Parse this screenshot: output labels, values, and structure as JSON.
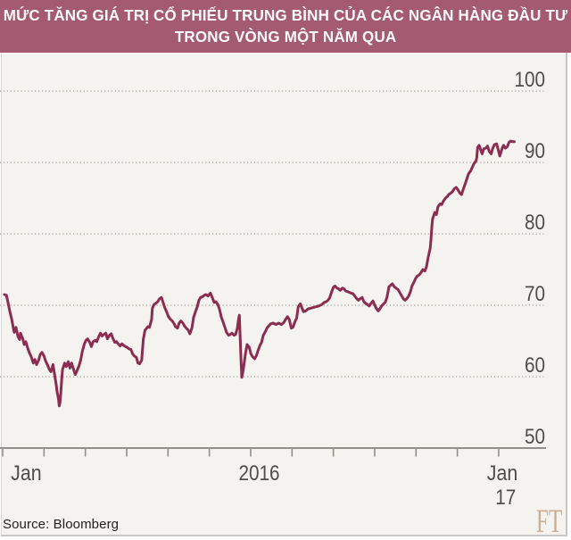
{
  "title": {
    "line1": "MỨC TĂNG GIÁ TRỊ CỔ PHIẾU TRUNG BÌNH CỦA CÁC NGÂN HÀNG ĐẦU TƯ",
    "line2": "TRONG VÒNG MỘT NĂM QUA"
  },
  "footer": {
    "source": "Source: Bloomberg",
    "logo": "FT"
  },
  "colors": {
    "title_bg": "#a45a70",
    "title_text": "#fdfbfa",
    "line": "#8c2c50",
    "grid_dotted": "#b6b3aa",
    "axis": "#90908b",
    "tick_label": "#4d4d4d",
    "panel_bg": "#f4f3ef",
    "frame_border": "#c7c6c2",
    "source_text": "#222222",
    "ft_logo": "#ccae90"
  },
  "chart_data": {
    "type": "line",
    "title": "Mức tăng giá trị cổ phiếu trung bình của các ngân hàng đầu tư trong vòng một năm qua",
    "xlabel": "",
    "ylabel": "",
    "x_unit": "months since Jan 2016",
    "x_range": [
      0,
      13.2
    ],
    "ylim": [
      50,
      100
    ],
    "grid": "horizontal-dotted",
    "legend": "none",
    "y_ticks": [
      50,
      60,
      70,
      80,
      90,
      100
    ],
    "x_ticks_months": [
      0,
      1,
      2,
      3,
      4,
      5,
      6,
      7,
      8,
      9,
      10,
      11,
      12
    ],
    "x_labels": [
      {
        "text": "Jan",
        "month": 0.55,
        "row": 1
      },
      {
        "text": "2016",
        "month": 6.2,
        "row": 1
      },
      {
        "text": "Jan",
        "month": 12.1,
        "row": 1
      },
      {
        "text": "17",
        "month": 12.18,
        "row": 2
      }
    ],
    "series": [
      {
        "name": "average-investment-bank-share-price-index",
        "color": "#8c2c50",
        "points": [
          [
            0.02,
            71.5
          ],
          [
            0.07,
            71.4
          ],
          [
            0.11,
            70.3
          ],
          [
            0.15,
            69.2
          ],
          [
            0.2,
            68.0
          ],
          [
            0.24,
            66.7
          ],
          [
            0.26,
            66.2
          ],
          [
            0.3,
            66.9
          ],
          [
            0.35,
            65.6
          ],
          [
            0.39,
            65.2
          ],
          [
            0.41,
            66.1
          ],
          [
            0.46,
            65.4
          ],
          [
            0.5,
            64.5
          ],
          [
            0.54,
            64.9
          ],
          [
            0.59,
            63.9
          ],
          [
            0.63,
            63.3
          ],
          [
            0.67,
            62.8
          ],
          [
            0.72,
            61.9
          ],
          [
            0.76,
            62.4
          ],
          [
            0.8,
            61.7
          ],
          [
            0.85,
            62.3
          ],
          [
            0.89,
            63.1
          ],
          [
            0.93,
            63.4
          ],
          [
            0.98,
            62.9
          ],
          [
            1.02,
            62.2
          ],
          [
            1.07,
            61.6
          ],
          [
            1.11,
            61.0
          ],
          [
            1.15,
            60.7
          ],
          [
            1.2,
            61.7
          ],
          [
            1.24,
            60.2
          ],
          [
            1.28,
            58.8
          ],
          [
            1.3,
            57.8
          ],
          [
            1.33,
            57.0
          ],
          [
            1.35,
            55.9
          ],
          [
            1.37,
            56.4
          ],
          [
            1.39,
            57.8
          ],
          [
            1.41,
            59.5
          ],
          [
            1.43,
            61.0
          ],
          [
            1.48,
            61.9
          ],
          [
            1.52,
            61.4
          ],
          [
            1.57,
            62.1
          ],
          [
            1.61,
            61.2
          ],
          [
            1.65,
            61.9
          ],
          [
            1.7,
            61.0
          ],
          [
            1.74,
            60.3
          ],
          [
            1.78,
            60.8
          ],
          [
            1.83,
            61.5
          ],
          [
            1.87,
            62.3
          ],
          [
            1.91,
            63.5
          ],
          [
            1.96,
            64.6
          ],
          [
            2.0,
            65.1
          ],
          [
            2.04,
            65.3
          ],
          [
            2.09,
            64.8
          ],
          [
            2.13,
            64.2
          ],
          [
            2.17,
            64.9
          ],
          [
            2.22,
            65.1
          ],
          [
            2.26,
            64.9
          ],
          [
            2.3,
            65.5
          ],
          [
            2.35,
            66.1
          ],
          [
            2.39,
            65.7
          ],
          [
            2.43,
            65.9
          ],
          [
            2.48,
            66.1
          ],
          [
            2.52,
            65.3
          ],
          [
            2.57,
            65.8
          ],
          [
            2.61,
            66.0
          ],
          [
            2.65,
            65.4
          ],
          [
            2.7,
            64.8
          ],
          [
            2.74,
            64.9
          ],
          [
            2.78,
            64.6
          ],
          [
            2.83,
            64.3
          ],
          [
            2.87,
            64.6
          ],
          [
            2.91,
            64.4
          ],
          [
            2.96,
            64.2
          ],
          [
            3.0,
            64.1
          ],
          [
            3.04,
            63.9
          ],
          [
            3.09,
            63.8
          ],
          [
            3.13,
            63.2
          ],
          [
            3.17,
            62.9
          ],
          [
            3.22,
            62.7
          ],
          [
            3.26,
            61.9
          ],
          [
            3.3,
            61.8
          ],
          [
            3.35,
            62.3
          ],
          [
            3.39,
            65.2
          ],
          [
            3.43,
            66.5
          ],
          [
            3.46,
            66.7
          ],
          [
            3.5,
            67.0
          ],
          [
            3.54,
            66.9
          ],
          [
            3.59,
            68.0
          ],
          [
            3.61,
            69.6
          ],
          [
            3.65,
            70.1
          ],
          [
            3.7,
            70.3
          ],
          [
            3.74,
            70.5
          ],
          [
            3.78,
            70.9
          ],
          [
            3.83,
            71.1
          ],
          [
            3.87,
            70.4
          ],
          [
            3.91,
            69.7
          ],
          [
            3.96,
            69.0
          ],
          [
            4.0,
            68.4
          ],
          [
            4.04,
            68.1
          ],
          [
            4.09,
            67.8
          ],
          [
            4.13,
            67.5
          ],
          [
            4.17,
            67.0
          ],
          [
            4.22,
            66.8
          ],
          [
            4.26,
            67.5
          ],
          [
            4.3,
            67.8
          ],
          [
            4.35,
            67.5
          ],
          [
            4.39,
            67.1
          ],
          [
            4.43,
            66.8
          ],
          [
            4.48,
            66.5
          ],
          [
            4.52,
            66.0
          ],
          [
            4.57,
            66.8
          ],
          [
            4.61,
            68.3
          ],
          [
            4.65,
            69.0
          ],
          [
            4.7,
            69.8
          ],
          [
            4.74,
            70.7
          ],
          [
            4.78,
            71.1
          ],
          [
            4.83,
            71.2
          ],
          [
            4.87,
            71.4
          ],
          [
            4.91,
            71.5
          ],
          [
            4.96,
            71.3
          ],
          [
            5.0,
            71.6
          ],
          [
            5.02,
            71.7
          ],
          [
            5.07,
            71.0
          ],
          [
            5.11,
            70.4
          ],
          [
            5.15,
            70.5
          ],
          [
            5.2,
            70.1
          ],
          [
            5.24,
            69.4
          ],
          [
            5.28,
            68.4
          ],
          [
            5.33,
            67.6
          ],
          [
            5.37,
            66.9
          ],
          [
            5.41,
            66.2
          ],
          [
            5.46,
            65.8
          ],
          [
            5.5,
            65.9
          ],
          [
            5.54,
            66.1
          ],
          [
            5.59,
            65.8
          ],
          [
            5.63,
            65.9
          ],
          [
            5.67,
            66.8
          ],
          [
            5.7,
            68.0
          ],
          [
            5.72,
            68.6
          ],
          [
            5.74,
            65.5
          ],
          [
            5.76,
            62.5
          ],
          [
            5.78,
            59.9
          ],
          [
            5.8,
            60.5
          ],
          [
            5.83,
            61.5
          ],
          [
            5.87,
            63.3
          ],
          [
            5.91,
            64.5
          ],
          [
            5.96,
            64.1
          ],
          [
            6.0,
            63.2
          ],
          [
            6.04,
            62.8
          ],
          [
            6.09,
            62.5
          ],
          [
            6.13,
            62.9
          ],
          [
            6.17,
            63.6
          ],
          [
            6.22,
            64.4
          ],
          [
            6.26,
            64.8
          ],
          [
            6.3,
            65.8
          ],
          [
            6.35,
            66.3
          ],
          [
            6.39,
            66.8
          ],
          [
            6.43,
            67.1
          ],
          [
            6.48,
            67.4
          ],
          [
            6.54,
            67.5
          ],
          [
            6.61,
            67.3
          ],
          [
            6.67,
            67.5
          ],
          [
            6.74,
            67.3
          ],
          [
            6.8,
            67.6
          ],
          [
            6.85,
            68.1
          ],
          [
            6.89,
            68.4
          ],
          [
            6.93,
            68.0
          ],
          [
            6.98,
            66.8
          ],
          [
            7.02,
            66.9
          ],
          [
            7.07,
            67.7
          ],
          [
            7.11,
            68.2
          ],
          [
            7.15,
            69.8
          ],
          [
            7.2,
            70.2
          ],
          [
            7.24,
            69.6
          ],
          [
            7.28,
            69.1
          ],
          [
            7.33,
            69.2
          ],
          [
            7.39,
            69.5
          ],
          [
            7.46,
            69.6
          ],
          [
            7.52,
            69.7
          ],
          [
            7.59,
            69.8
          ],
          [
            7.65,
            69.9
          ],
          [
            7.72,
            70.1
          ],
          [
            7.78,
            70.4
          ],
          [
            7.83,
            70.5
          ],
          [
            7.87,
            70.7
          ],
          [
            7.91,
            71.0
          ],
          [
            7.96,
            71.9
          ],
          [
            8.0,
            72.5
          ],
          [
            8.04,
            72.7
          ],
          [
            8.09,
            72.4
          ],
          [
            8.13,
            72.3
          ],
          [
            8.17,
            72.1
          ],
          [
            8.22,
            72.4
          ],
          [
            8.26,
            72.3
          ],
          [
            8.3,
            72.0
          ],
          [
            8.35,
            71.9
          ],
          [
            8.39,
            71.8
          ],
          [
            8.43,
            71.7
          ],
          [
            8.48,
            71.6
          ],
          [
            8.52,
            71.3
          ],
          [
            8.57,
            70.9
          ],
          [
            8.61,
            70.7
          ],
          [
            8.65,
            70.9
          ],
          [
            8.7,
            71.1
          ],
          [
            8.74,
            70.5
          ],
          [
            8.78,
            70.3
          ],
          [
            8.83,
            70.1
          ],
          [
            8.87,
            69.9
          ],
          [
            8.91,
            70.2
          ],
          [
            8.96,
            70.6
          ],
          [
            9.0,
            70.1
          ],
          [
            9.04,
            69.6
          ],
          [
            9.09,
            69.2
          ],
          [
            9.13,
            69.5
          ],
          [
            9.17,
            69.9
          ],
          [
            9.22,
            70.2
          ],
          [
            9.26,
            70.4
          ],
          [
            9.3,
            71.1
          ],
          [
            9.35,
            72.6
          ],
          [
            9.39,
            72.8
          ],
          [
            9.43,
            73.0
          ],
          [
            9.48,
            72.6
          ],
          [
            9.52,
            72.4
          ],
          [
            9.57,
            72.2
          ],
          [
            9.61,
            71.8
          ],
          [
            9.65,
            71.4
          ],
          [
            9.7,
            70.9
          ],
          [
            9.74,
            70.7
          ],
          [
            9.78,
            70.9
          ],
          [
            9.83,
            71.3
          ],
          [
            9.87,
            71.9
          ],
          [
            9.91,
            72.7
          ],
          [
            9.96,
            73.3
          ],
          [
            10.0,
            73.8
          ],
          [
            10.04,
            74.1
          ],
          [
            10.09,
            74.3
          ],
          [
            10.13,
            74.6
          ],
          [
            10.17,
            75.0
          ],
          [
            10.22,
            74.8
          ],
          [
            10.26,
            75.4
          ],
          [
            10.3,
            76.7
          ],
          [
            10.35,
            78.0
          ],
          [
            10.37,
            79.3
          ],
          [
            10.39,
            81.0
          ],
          [
            10.41,
            82.1
          ],
          [
            10.46,
            83.0
          ],
          [
            10.5,
            82.7
          ],
          [
            10.54,
            83.8
          ],
          [
            10.59,
            84.2
          ],
          [
            10.63,
            84.1
          ],
          [
            10.67,
            84.6
          ],
          [
            10.72,
            85.0
          ],
          [
            10.76,
            85.2
          ],
          [
            10.8,
            85.5
          ],
          [
            10.85,
            85.7
          ],
          [
            10.89,
            85.9
          ],
          [
            10.93,
            86.3
          ],
          [
            10.98,
            86.5
          ],
          [
            11.02,
            86.2
          ],
          [
            11.07,
            85.7
          ],
          [
            11.11,
            85.5
          ],
          [
            11.15,
            86.2
          ],
          [
            11.2,
            87.0
          ],
          [
            11.24,
            87.7
          ],
          [
            11.28,
            88.4
          ],
          [
            11.33,
            88.8
          ],
          [
            11.37,
            89.3
          ],
          [
            11.41,
            89.8
          ],
          [
            11.46,
            90.2
          ],
          [
            11.48,
            90.7
          ],
          [
            11.5,
            92.1
          ],
          [
            11.54,
            92.4
          ],
          [
            11.59,
            91.5
          ],
          [
            11.61,
            91.2
          ],
          [
            11.65,
            91.9
          ],
          [
            11.7,
            92.0
          ],
          [
            11.74,
            92.3
          ],
          [
            11.78,
            91.6
          ],
          [
            11.83,
            91.2
          ],
          [
            11.87,
            92.0
          ],
          [
            11.91,
            92.5
          ],
          [
            11.96,
            92.6
          ],
          [
            12.0,
            91.8
          ],
          [
            12.04,
            90.9
          ],
          [
            12.09,
            91.9
          ],
          [
            12.13,
            92.4
          ],
          [
            12.17,
            92.0
          ],
          [
            12.22,
            92.2
          ],
          [
            12.26,
            92.8
          ],
          [
            12.3,
            93.0
          ],
          [
            12.35,
            92.9
          ],
          [
            12.39,
            92.9
          ]
        ]
      }
    ]
  }
}
